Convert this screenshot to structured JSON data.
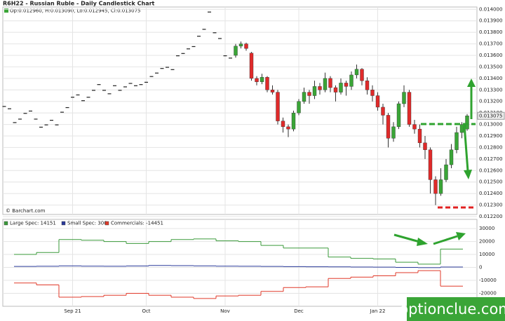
{
  "chart_data": [
    {
      "type": "candlestick",
      "title": "R6H22 - Russian Ruble - Daily Candlestick Chart",
      "ohlc_label": "Op:0.012960, H:0.013090, Lo:0.012945, Cl:0.013075",
      "last_price_label": "0.013075",
      "source": "© Barchart.com",
      "up_color": "#3aa537",
      "down_color": "#e02a2a",
      "flat_color": "#222222",
      "ylim": [
        0.0122,
        0.01402
      ],
      "yticks": [
        {
          "value": 0.014,
          "label": "0.014000"
        },
        {
          "value": 0.0139,
          "label": "0.013900"
        },
        {
          "value": 0.0138,
          "label": "0.013800"
        },
        {
          "value": 0.0137,
          "label": "0.013700"
        },
        {
          "value": 0.0136,
          "label": "0.013600"
        },
        {
          "value": 0.0135,
          "label": "0.013500"
        },
        {
          "value": 0.0134,
          "label": "0.013400"
        },
        {
          "value": 0.0133,
          "label": "0.013300"
        },
        {
          "value": 0.0132,
          "label": "0.013200"
        },
        {
          "value": 0.0131,
          "label": "0.013100"
        },
        {
          "value": 0.013,
          "label": "0.013000"
        },
        {
          "value": 0.0129,
          "label": "0.012900"
        },
        {
          "value": 0.0128,
          "label": "0.012800"
        },
        {
          "value": 0.0127,
          "label": "0.012700"
        },
        {
          "value": 0.0126,
          "label": "0.012600"
        },
        {
          "value": 0.0125,
          "label": "0.012500"
        },
        {
          "value": 0.0124,
          "label": "0.012400"
        },
        {
          "value": 0.0123,
          "label": "0.012300"
        },
        {
          "value": 0.0122,
          "label": "0.012200"
        }
      ],
      "xticks": [
        {
          "value": 13,
          "label": "Sep 21"
        },
        {
          "value": 27,
          "label": "Oct"
        },
        {
          "value": 42,
          "label": "Nov"
        },
        {
          "value": 56,
          "label": "Dec"
        },
        {
          "value": 71,
          "label": "Jan 22"
        }
      ],
      "grid": true,
      "ohlc": [
        [
          0.01316,
          0.01316,
          0.01316,
          0.01316
        ],
        [
          0.01314,
          0.01314,
          0.01314,
          0.01314
        ],
        [
          0.01302,
          0.01302,
          0.01302,
          0.01302
        ],
        [
          0.01305,
          0.01305,
          0.01305,
          0.01305
        ],
        [
          0.0131,
          0.0131,
          0.0131,
          0.0131
        ],
        [
          0.01312,
          0.01312,
          0.01312,
          0.01312
        ],
        [
          0.01305,
          0.01305,
          0.01305,
          0.01305
        ],
        [
          0.01298,
          0.01298,
          0.01298,
          0.01298
        ],
        [
          0.013,
          0.013,
          0.013,
          0.013
        ],
        [
          0.01304,
          0.01304,
          0.01304,
          0.01304
        ],
        [
          0.013,
          0.013,
          0.013,
          0.013
        ],
        [
          0.01311,
          0.01311,
          0.01311,
          0.01311
        ],
        [
          0.01315,
          0.01315,
          0.01315,
          0.01315
        ],
        [
          0.01324,
          0.01324,
          0.01324,
          0.01324
        ],
        [
          0.01326,
          0.01326,
          0.01326,
          0.01326
        ],
        [
          0.01321,
          0.01321,
          0.01321,
          0.01321
        ],
        [
          0.01324,
          0.01324,
          0.01324,
          0.01324
        ],
        [
          0.0133,
          0.0133,
          0.0133,
          0.0133
        ],
        [
          0.01335,
          0.01335,
          0.01335,
          0.01335
        ],
        [
          0.0133,
          0.0133,
          0.0133,
          0.0133
        ],
        [
          0.01327,
          0.01327,
          0.01327,
          0.01327
        ],
        [
          0.01334,
          0.01334,
          0.01334,
          0.01334
        ],
        [
          0.0133,
          0.0133,
          0.0133,
          0.0133
        ],
        [
          0.01333,
          0.01333,
          0.01333,
          0.01333
        ],
        [
          0.01336,
          0.01336,
          0.01336,
          0.01336
        ],
        [
          0.01334,
          0.01334,
          0.01334,
          0.01334
        ],
        [
          0.01335,
          0.01335,
          0.01335,
          0.01335
        ],
        [
          0.01337,
          0.01337,
          0.01337,
          0.01337
        ],
        [
          0.01342,
          0.01342,
          0.01342,
          0.01342
        ],
        [
          0.01345,
          0.01345,
          0.01345,
          0.01345
        ],
        [
          0.01349,
          0.01349,
          0.01349,
          0.01349
        ],
        [
          0.0135,
          0.0135,
          0.0135,
          0.0135
        ],
        [
          0.01348,
          0.01348,
          0.01348,
          0.01348
        ],
        [
          0.0136,
          0.0136,
          0.0136,
          0.0136
        ],
        [
          0.01362,
          0.01362,
          0.01362,
          0.01362
        ],
        [
          0.01366,
          0.01366,
          0.01366,
          0.01366
        ],
        [
          0.01368,
          0.01368,
          0.01368,
          0.01368
        ],
        [
          0.01377,
          0.01377,
          0.01377,
          0.01377
        ],
        [
          0.01383,
          0.01383,
          0.01383,
          0.01383
        ],
        [
          0.01398,
          0.01398,
          0.01398,
          0.01398
        ],
        [
          0.0138,
          0.0138,
          0.0138,
          0.0138
        ],
        [
          0.01375,
          0.01375,
          0.01375,
          0.01375
        ],
        [
          0.0136,
          0.0136,
          0.0136,
          0.0136
        ],
        [
          0.01358,
          0.01358,
          0.01358,
          0.01358
        ],
        [
          0.0136,
          0.0137,
          0.01358,
          0.01368
        ],
        [
          0.01368,
          0.01372,
          0.01366,
          0.0137
        ],
        [
          0.0137,
          0.01371,
          0.01364,
          0.01366
        ],
        [
          0.01362,
          0.01363,
          0.01338,
          0.0134
        ],
        [
          0.0134,
          0.01342,
          0.01334,
          0.01337
        ],
        [
          0.01337,
          0.01344,
          0.01335,
          0.01341
        ],
        [
          0.01341,
          0.01342,
          0.01328,
          0.0133
        ],
        [
          0.0133,
          0.01334,
          0.01326,
          0.01328
        ],
        [
          0.01328,
          0.0133,
          0.013,
          0.01303
        ],
        [
          0.01303,
          0.01306,
          0.01293,
          0.01298
        ],
        [
          0.01298,
          0.013,
          0.01289,
          0.01296
        ],
        [
          0.01296,
          0.01312,
          0.01294,
          0.0131
        ],
        [
          0.0131,
          0.01322,
          0.01308,
          0.0132
        ],
        [
          0.0132,
          0.01332,
          0.01318,
          0.01328
        ],
        [
          0.01328,
          0.0133,
          0.01318,
          0.01325
        ],
        [
          0.01325,
          0.01338,
          0.01322,
          0.01333
        ],
        [
          0.01333,
          0.01336,
          0.01326,
          0.0133
        ],
        [
          0.0133,
          0.01345,
          0.01328,
          0.0134
        ],
        [
          0.0134,
          0.01342,
          0.01328,
          0.01332
        ],
        [
          0.01332,
          0.01334,
          0.0132,
          0.01328
        ],
        [
          0.01328,
          0.0134,
          0.01326,
          0.01336
        ],
        [
          0.01336,
          0.01338,
          0.01325,
          0.01333
        ],
        [
          0.01333,
          0.01346,
          0.0133,
          0.01343
        ],
        [
          0.01343,
          0.01352,
          0.0134,
          0.01348
        ],
        [
          0.01348,
          0.01349,
          0.01334,
          0.01338
        ],
        [
          0.01338,
          0.01341,
          0.01326,
          0.0133
        ],
        [
          0.0133,
          0.01334,
          0.0132,
          0.01325
        ],
        [
          0.01325,
          0.01328,
          0.01312,
          0.01315
        ],
        [
          0.01315,
          0.01318,
          0.013,
          0.01308
        ],
        [
          0.01308,
          0.0131,
          0.0128,
          0.01288
        ],
        [
          0.01288,
          0.01302,
          0.01285,
          0.01298
        ],
        [
          0.01298,
          0.0132,
          0.01296,
          0.01318
        ],
        [
          0.01318,
          0.01334,
          0.01315,
          0.01328
        ],
        [
          0.01328,
          0.0133,
          0.01298,
          0.013
        ],
        [
          0.013,
          0.01304,
          0.01292,
          0.01296
        ],
        [
          0.01296,
          0.013,
          0.0128,
          0.01284
        ],
        [
          0.01284,
          0.0129,
          0.0127,
          0.01278
        ],
        [
          0.01278,
          0.0128,
          0.0124,
          0.01252
        ],
        [
          0.01252,
          0.01255,
          0.0123,
          0.0124
        ],
        [
          0.0124,
          0.01262,
          0.01238,
          0.01252
        ],
        [
          0.01252,
          0.0127,
          0.0125,
          0.01265
        ],
        [
          0.01265,
          0.01283,
          0.01262,
          0.01278
        ],
        [
          0.01278,
          0.01298,
          0.01275,
          0.01293
        ],
        [
          0.01293,
          0.01302,
          0.01288,
          0.013
        ],
        [
          0.01296,
          0.01309,
          0.012945,
          0.013075
        ]
      ]
    },
    {
      "type": "step",
      "ylim": [
        -30000,
        36000
      ],
      "yticks": [
        30000,
        20000,
        10000,
        0,
        -10000,
        -20000
      ],
      "grid": true,
      "watermark": "optionclue.com",
      "series": [
        {
          "name": "Large Spec: 14151",
          "color": "#3a9a3a",
          "values": [
            10000,
            11500,
            21500,
            21000,
            20000,
            18500,
            20000,
            21500,
            22000,
            20500,
            20000,
            17000,
            15000,
            15000,
            8000,
            7000,
            6500,
            4000,
            2500,
            14151
          ]
        },
        {
          "name": "Small Spec: 300",
          "color": "#2a3a9a",
          "values": [
            800,
            900,
            1200,
            1000,
            900,
            1100,
            1500,
            1400,
            1200,
            1000,
            900,
            800,
            600,
            500,
            400,
            300,
            200,
            0,
            -200,
            300
          ]
        },
        {
          "name": "Commercials: -14451",
          "color": "#e03a2a",
          "values": [
            -12000,
            -13500,
            -23000,
            -22500,
            -21500,
            -20000,
            -21500,
            -23000,
            -24000,
            -22000,
            -21500,
            -18500,
            -15500,
            -15000,
            -8500,
            -7500,
            -6500,
            -4000,
            -2500,
            -14451
          ]
        }
      ]
    }
  ]
}
